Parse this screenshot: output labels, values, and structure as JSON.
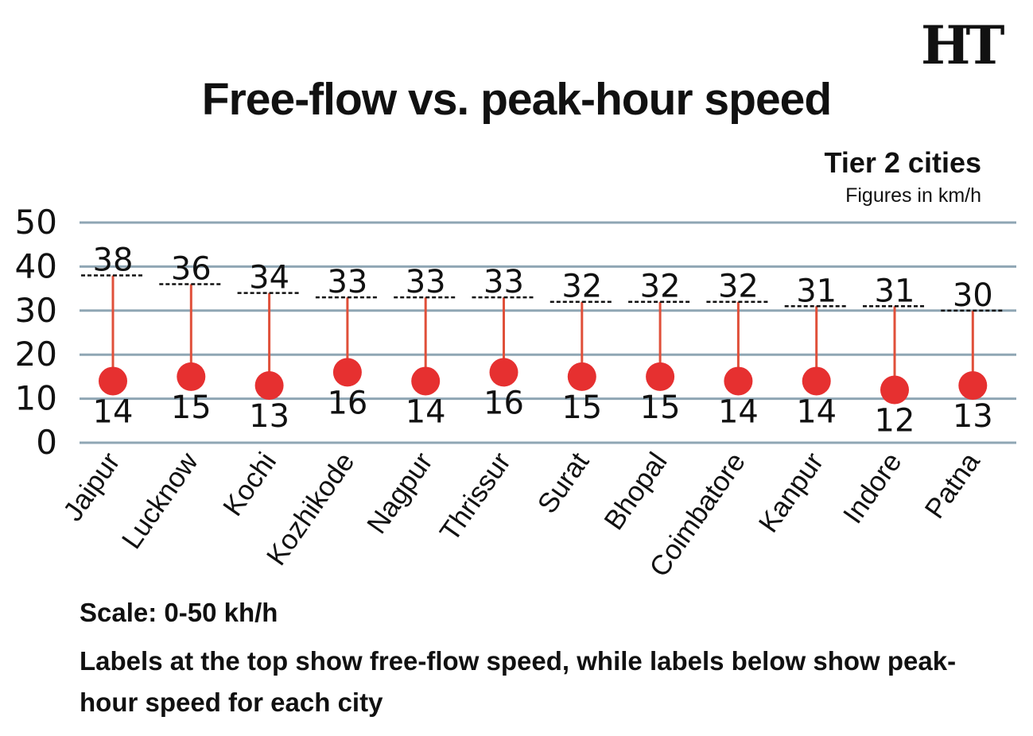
{
  "logo": {
    "text": "HT"
  },
  "chart_data": {
    "type": "dot",
    "title": "Free-flow vs. peak-hour speed",
    "subtitle": "Tier 2 cities",
    "units": "Figures in km/h",
    "categories": [
      "Jaipur",
      "Lucknow",
      "Kochi",
      "Kozhikode",
      "Nagpur",
      "Thrissur",
      "Surat",
      "Bhopal",
      "Coimbatore",
      "Kanpur",
      "Indore",
      "Patna"
    ],
    "series": [
      {
        "values": [
          38,
          36,
          34,
          33,
          33,
          33,
          32,
          32,
          32,
          31,
          31,
          30
        ]
      },
      {
        "values": [
          14,
          15,
          13,
          16,
          14,
          16,
          15,
          15,
          14,
          14,
          12,
          13
        ]
      }
    ],
    "y_ticks": [
      0,
      10,
      20,
      30,
      40,
      50
    ],
    "ylim": [
      0,
      50
    ],
    "grid": true,
    "colors": {
      "peak_dot": "#e63030",
      "stem": "#e0503a",
      "grid": "#8fa6b4",
      "freeflow_line": "#111111"
    }
  },
  "notes": {
    "scale": "Scale: 0-50 kh/h",
    "text": "Labels at the top show free-flow speed, while labels below show peak-hour speed for each city"
  }
}
